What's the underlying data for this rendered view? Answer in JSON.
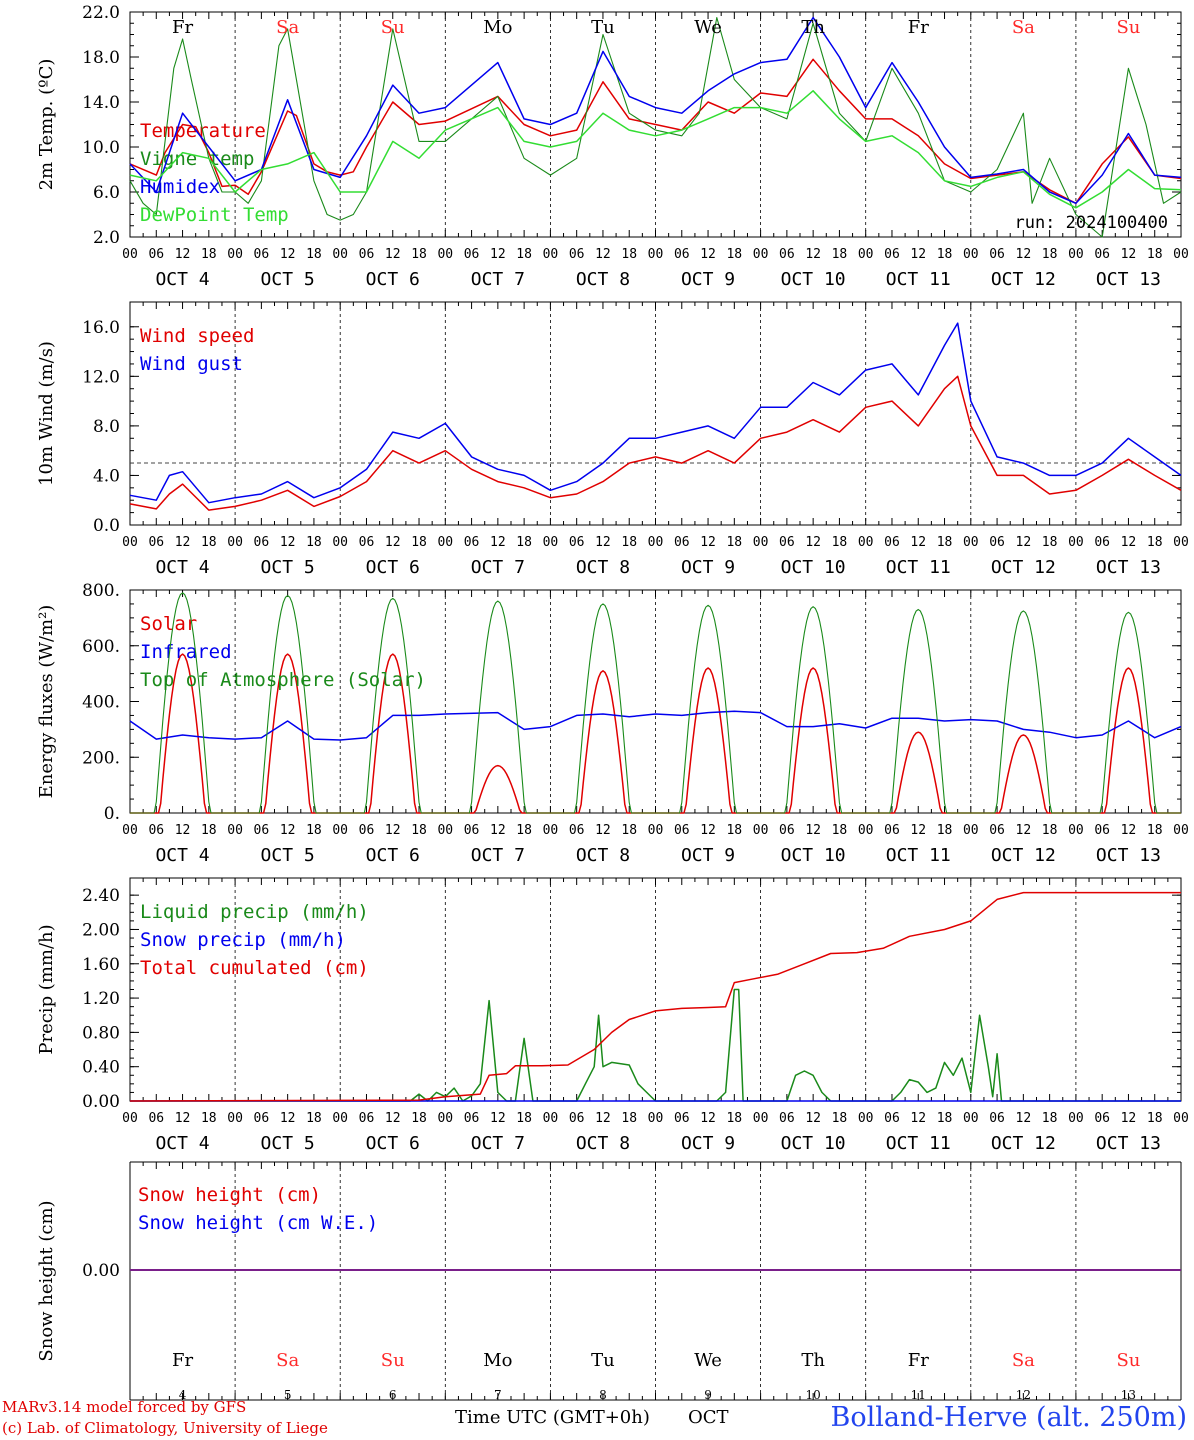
{
  "colors": {
    "red": "#ff0000",
    "dark_red": "#e00000",
    "green": "#1a8a1a",
    "light_green": "#33dd33",
    "blue": "#0000ee",
    "purple": "#7a1f8a",
    "station_blue": "#2244ee",
    "weekend": "#ff2a2a",
    "black": "#000000"
  },
  "x_axis": {
    "hour_labels": [
      "00",
      "06",
      "12",
      "18"
    ],
    "final_hour_label": "00",
    "date_labels": [
      "OCT  4",
      "OCT  5",
      "OCT  6",
      "OCT  7",
      "OCT  8",
      "OCT  9",
      "OCT 10",
      "OCT 11",
      "OCT 12",
      "OCT 13"
    ],
    "weekdays": [
      "Fr",
      "Sa",
      "Su",
      "Mo",
      "Tu",
      "We",
      "Th",
      "Fr",
      "Sa",
      "Su"
    ],
    "weekend_flags": [
      false,
      true,
      true,
      false,
      false,
      false,
      false,
      false,
      true,
      true
    ],
    "bottom_day_numbers": [
      "4",
      "5",
      "6",
      "7",
      "8",
      "9",
      "10",
      "11",
      "12",
      "13"
    ],
    "xlabel": "Time UTC (GMT+0h)",
    "month": "OCT"
  },
  "footer": {
    "model_line": "MARv3.14 model forced by GFS",
    "credit_line": "(c) Lab. of Climatology, University of Liege",
    "station": "Bolland-Herve (alt. 250m)"
  },
  "chart_data": [
    {
      "type": "line",
      "ylabel": "2m Temp. (ºC)",
      "ylim": [
        2,
        22
      ],
      "y_ticks": [
        "2.0",
        "6.0",
        "10.0",
        "14.0",
        "18.0",
        "22.0"
      ],
      "annotation": "run: 2024100400",
      "x_unit": "hours since OCT 4 00 UTC",
      "series": [
        {
          "name": "Temperature",
          "color": "#e00000",
          "x": [
            0,
            6,
            8,
            12,
            15,
            18,
            21,
            24,
            27,
            30,
            36,
            38,
            42,
            45,
            48,
            51,
            54,
            60,
            66,
            72,
            84,
            90,
            96,
            102,
            108,
            114,
            120,
            126,
            132,
            138,
            144,
            150,
            156,
            162,
            168,
            174,
            180,
            186,
            192,
            198,
            204,
            210,
            216,
            222,
            228,
            234,
            240
          ],
          "values": [
            8.5,
            7.5,
            9.5,
            12.0,
            11.8,
            9.5,
            6.5,
            6.6,
            5.8,
            7.8,
            13.2,
            12.8,
            8.5,
            7.8,
            7.5,
            7.8,
            10.0,
            14.0,
            12.0,
            12.3,
            14.5,
            12.0,
            11.0,
            11.5,
            15.8,
            12.5,
            12.0,
            11.5,
            14.0,
            13.0,
            14.8,
            14.5,
            17.8,
            15.0,
            12.5,
            12.5,
            11.0,
            8.5,
            7.2,
            7.5,
            7.8,
            6.2,
            5.0,
            8.5,
            10.9,
            7.5,
            7.2
          ]
        },
        {
          "name": "Vigne temp",
          "color": "#1a8a1a",
          "x": [
            0,
            3,
            6,
            10,
            12,
            14,
            18,
            21,
            24,
            27,
            30,
            34,
            36,
            38,
            42,
            45,
            48,
            51,
            54,
            60,
            66,
            72,
            84,
            90,
            96,
            102,
            108,
            114,
            120,
            126,
            130,
            134,
            138,
            144,
            150,
            156,
            162,
            168,
            174,
            180,
            186,
            192,
            198,
            204,
            206,
            210,
            216,
            222,
            228,
            232,
            236,
            240
          ],
          "values": [
            7.0,
            5.0,
            4.0,
            17.0,
            19.6,
            16.0,
            9.0,
            6.0,
            6.0,
            5.0,
            7.0,
            19.0,
            20.5,
            16.0,
            7.0,
            4.0,
            3.5,
            4.0,
            6.0,
            20.5,
            10.5,
            10.5,
            14.5,
            9.0,
            7.5,
            9.0,
            20.0,
            13.0,
            11.5,
            11.0,
            13.0,
            21.5,
            16.0,
            13.5,
            12.5,
            21.0,
            13.0,
            10.5,
            17.0,
            13.0,
            7.0,
            6.0,
            8.0,
            13.0,
            5.0,
            9.0,
            4.0,
            2.0,
            17.0,
            12.0,
            5.0,
            6.0
          ]
        },
        {
          "name": "Humidex",
          "color": "#0000ee",
          "x": [
            0,
            6,
            12,
            18,
            24,
            30,
            36,
            42,
            48,
            54,
            60,
            66,
            72,
            84,
            90,
            96,
            102,
            108,
            114,
            120,
            126,
            132,
            138,
            144,
            150,
            156,
            162,
            168,
            174,
            180,
            186,
            192,
            198,
            204,
            210,
            216,
            222,
            228,
            234,
            240
          ],
          "values": [
            8.5,
            6.0,
            13.0,
            10.0,
            7.0,
            8.0,
            14.2,
            8.0,
            7.3,
            11.0,
            15.5,
            13.0,
            13.5,
            17.5,
            12.5,
            12.0,
            13.0,
            18.5,
            14.5,
            13.5,
            13.0,
            15.0,
            16.5,
            17.5,
            17.8,
            21.5,
            18.0,
            13.5,
            17.5,
            14.0,
            10.0,
            7.3,
            7.6,
            8.0,
            6.0,
            5.0,
            7.5,
            11.2,
            7.5,
            7.3
          ]
        },
        {
          "name": "DewPoint Temp",
          "color": "#33dd33",
          "x": [
            0,
            6,
            12,
            18,
            24,
            30,
            36,
            42,
            48,
            54,
            60,
            66,
            72,
            84,
            90,
            96,
            102,
            108,
            114,
            120,
            126,
            132,
            138,
            144,
            150,
            156,
            162,
            168,
            174,
            180,
            186,
            192,
            198,
            204,
            210,
            216,
            222,
            228,
            234,
            240
          ],
          "values": [
            7.5,
            7.0,
            9.5,
            9.0,
            6.0,
            8.0,
            8.5,
            9.5,
            6.0,
            6.0,
            10.5,
            9.0,
            11.5,
            13.5,
            10.5,
            10.0,
            10.5,
            13.0,
            11.5,
            11.0,
            11.5,
            12.5,
            13.5,
            13.5,
            13.0,
            15.0,
            12.5,
            10.5,
            11.0,
            9.5,
            7.0,
            6.5,
            7.3,
            7.8,
            5.8,
            4.6,
            6.0,
            8.0,
            6.3,
            6.2
          ]
        }
      ]
    },
    {
      "type": "line",
      "ylabel": "10m Wind (m/s)",
      "ylim": [
        0,
        18
      ],
      "y_ticks": [
        "0.0",
        "4.0",
        "8.0",
        "12.0",
        "16.0"
      ],
      "reference_line": 5,
      "x_unit": "hours since OCT 4 00 UTC",
      "series": [
        {
          "name": "Wind speed",
          "color": "#e00000",
          "x": [
            0,
            6,
            9,
            12,
            18,
            24,
            30,
            36,
            42,
            48,
            54,
            60,
            66,
            72,
            78,
            84,
            90,
            96,
            102,
            108,
            114,
            120,
            126,
            132,
            138,
            144,
            150,
            156,
            162,
            168,
            174,
            180,
            186,
            189,
            192,
            198,
            204,
            210,
            216,
            222,
            228,
            234,
            240
          ],
          "values": [
            1.7,
            1.3,
            2.5,
            3.3,
            1.2,
            1.5,
            2.0,
            2.8,
            1.5,
            2.3,
            3.5,
            6.0,
            5.0,
            6.0,
            4.5,
            3.5,
            3.0,
            2.2,
            2.5,
            3.5,
            5.0,
            5.5,
            5.0,
            6.0,
            5.0,
            7.0,
            7.5,
            8.5,
            7.5,
            9.5,
            10.0,
            8.0,
            11.0,
            12.0,
            8.0,
            4.0,
            4.0,
            2.5,
            2.8,
            4.0,
            5.3,
            4.0,
            2.8
          ]
        },
        {
          "name": "Wind gust",
          "color": "#0000ee",
          "x": [
            0,
            6,
            9,
            12,
            18,
            24,
            30,
            36,
            42,
            48,
            54,
            60,
            66,
            72,
            78,
            84,
            90,
            96,
            102,
            108,
            114,
            120,
            126,
            132,
            138,
            144,
            150,
            156,
            162,
            168,
            174,
            180,
            186,
            189,
            192,
            198,
            204,
            210,
            216,
            222,
            228,
            234,
            240
          ],
          "values": [
            2.4,
            2.0,
            4.0,
            4.3,
            1.8,
            2.2,
            2.5,
            3.5,
            2.2,
            3.0,
            4.5,
            7.5,
            7.0,
            8.2,
            5.5,
            4.5,
            4.0,
            2.8,
            3.5,
            5.0,
            7.0,
            7.0,
            7.5,
            8.0,
            7.0,
            9.5,
            9.5,
            11.5,
            10.5,
            12.5,
            13.0,
            10.5,
            14.5,
            16.3,
            10.0,
            5.5,
            5.0,
            4.0,
            4.0,
            5.0,
            7.0,
            5.5,
            4.0
          ]
        }
      ]
    },
    {
      "type": "line",
      "ylabel": "Energy fluxes (W/m²)",
      "ylim": [
        0,
        800
      ],
      "y_ticks": [
        "0.",
        "200.",
        "400.",
        "600.",
        "800."
      ],
      "x_unit": "hours since OCT 4 00 UTC",
      "series": [
        {
          "name": "Solar",
          "color": "#e00000",
          "daily_peak": [
            570,
            570,
            570,
            170,
            510,
            520,
            520,
            290,
            280,
            520
          ]
        },
        {
          "name": "Infrared",
          "color": "#0000ee",
          "x": [
            0,
            6,
            12,
            18,
            24,
            30,
            36,
            42,
            48,
            54,
            60,
            66,
            72,
            84,
            90,
            96,
            102,
            108,
            114,
            120,
            126,
            132,
            138,
            144,
            150,
            156,
            162,
            168,
            174,
            180,
            186,
            192,
            198,
            204,
            210,
            216,
            222,
            228,
            234,
            240
          ],
          "values": [
            330,
            265,
            280,
            270,
            265,
            270,
            330,
            265,
            262,
            270,
            350,
            350,
            355,
            360,
            300,
            310,
            350,
            355,
            345,
            355,
            350,
            360,
            365,
            360,
            310,
            310,
            320,
            305,
            340,
            340,
            330,
            335,
            330,
            300,
            290,
            270,
            280,
            330,
            270,
            310
          ]
        },
        {
          "name": "Top of Atmosphere (Solar)",
          "color": "#1a8a1a",
          "daily_peak": [
            790,
            780,
            770,
            760,
            750,
            745,
            740,
            730,
            725,
            720
          ]
        }
      ]
    },
    {
      "type": "line",
      "ylabel": "Precip (mm/h)",
      "ylim": [
        0,
        2.6
      ],
      "y_ticks": [
        "0.00",
        "0.40",
        "0.80",
        "1.20",
        "1.60",
        "2.00",
        "2.40"
      ],
      "x_unit": "hours since OCT 4 00 UTC",
      "series": [
        {
          "name": "Liquid precip (mm/h)",
          "color": "#1a8a1a",
          "x": [
            0,
            64,
            66,
            68,
            70,
            72,
            74,
            76,
            78,
            80,
            82,
            84,
            86,
            87,
            88,
            90,
            92,
            94,
            96,
            102,
            104,
            106,
            107,
            108,
            110,
            114,
            116,
            118,
            120,
            122,
            126,
            134,
            136,
            138,
            139,
            140,
            142,
            144,
            150,
            152,
            154,
            156,
            158,
            160,
            162,
            168,
            174,
            176,
            178,
            180,
            182,
            184,
            186,
            188,
            190,
            192,
            194,
            196,
            197,
            198,
            199,
            200,
            201,
            202,
            204,
            240
          ],
          "values": [
            0,
            0,
            0.08,
            0,
            0.1,
            0.05,
            0.15,
            0,
            0.06,
            0.2,
            1.17,
            0.1,
            0,
            0,
            0,
            0.73,
            0,
            0,
            0,
            0,
            0.2,
            0.4,
            1.0,
            0.4,
            0.45,
            0.42,
            0.2,
            0.1,
            0,
            0,
            0,
            0,
            0.1,
            1.3,
            1.3,
            0,
            0,
            0,
            0,
            0.3,
            0.35,
            0.3,
            0.1,
            0,
            0,
            0,
            0,
            0.1,
            0.25,
            0.22,
            0.1,
            0.15,
            0.45,
            0.3,
            0.5,
            0.1,
            1.0,
            0.4,
            0.05,
            0.55,
            0,
            0,
            0,
            0,
            0,
            0
          ]
        },
        {
          "name": "Snow precip (mm/h)",
          "color": "#0000ee",
          "x": [
            0,
            240
          ],
          "values": [
            0,
            0
          ]
        },
        {
          "name": "Total cumulated (cm)",
          "color": "#e00000",
          "x": [
            0,
            66,
            72,
            80,
            82,
            86,
            88,
            94,
            100,
            106,
            110,
            114,
            120,
            126,
            132,
            136,
            138,
            142,
            148,
            154,
            160,
            166,
            172,
            178,
            186,
            192,
            198,
            204,
            240
          ],
          "values": [
            0,
            0.01,
            0.05,
            0.08,
            0.3,
            0.32,
            0.41,
            0.41,
            0.42,
            0.6,
            0.8,
            0.95,
            1.05,
            1.08,
            1.09,
            1.1,
            1.38,
            1.42,
            1.48,
            1.6,
            1.72,
            1.73,
            1.78,
            1.92,
            2.0,
            2.1,
            2.35,
            2.43,
            2.43
          ]
        }
      ]
    },
    {
      "type": "line",
      "ylabel": "Snow height (cm)",
      "ylim": [
        -1,
        1
      ],
      "y_ticks": [
        "0.00"
      ],
      "x_unit": "hours since OCT 4 00 UTC",
      "series": [
        {
          "name": "Snow height (cm)",
          "color": "#e00000",
          "x": [
            0,
            240
          ],
          "values": [
            0,
            0
          ]
        },
        {
          "name": "Snow height (cm W.E.)",
          "color": "#0000ee",
          "x": [
            0,
            240
          ],
          "values": [
            0,
            0
          ]
        }
      ]
    }
  ]
}
